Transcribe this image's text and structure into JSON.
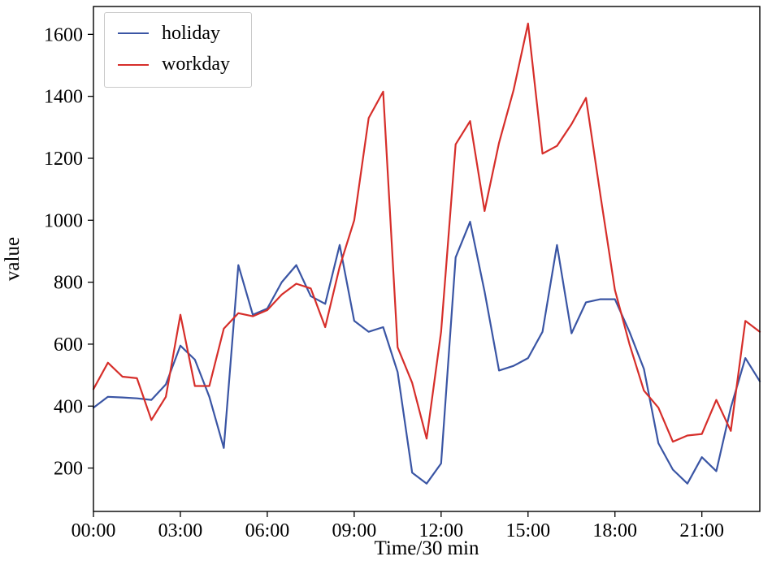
{
  "figure": {
    "xlabel": "Time/30 min",
    "ylabel": "value",
    "legend": {
      "position": "upper-left",
      "items": [
        {
          "label": "holiday"
        },
        {
          "label": "workday"
        }
      ]
    }
  },
  "chart_data": {
    "type": "line",
    "title": "",
    "xlabel": "Time/30 min",
    "ylabel": "value",
    "grid": false,
    "legend_position": "upper-left",
    "x_interval_minutes": 30,
    "x_times": [
      "00:00",
      "00:30",
      "01:00",
      "01:30",
      "02:00",
      "02:30",
      "03:00",
      "03:30",
      "04:00",
      "04:30",
      "05:00",
      "05:30",
      "06:00",
      "06:30",
      "07:00",
      "07:30",
      "08:00",
      "08:30",
      "09:00",
      "09:30",
      "10:00",
      "10:30",
      "11:00",
      "11:30",
      "12:00",
      "12:30",
      "13:00",
      "13:30",
      "14:00",
      "14:30",
      "15:00",
      "15:30",
      "16:00",
      "16:30",
      "17:00",
      "17:30",
      "18:00",
      "18:30",
      "19:00",
      "19:30",
      "20:00",
      "20:30",
      "21:00",
      "21:30",
      "22:00",
      "22:30",
      "23:00"
    ],
    "series": [
      {
        "name": "holiday",
        "color": "#3a55a4",
        "values": [
          395,
          430,
          428,
          425,
          420,
          470,
          595,
          550,
          430,
          265,
          855,
          695,
          715,
          800,
          855,
          755,
          730,
          920,
          675,
          640,
          655,
          510,
          185,
          150,
          215,
          880,
          995,
          770,
          515,
          530,
          555,
          640,
          920,
          635,
          735,
          745,
          745,
          640,
          520,
          280,
          195,
          150,
          235,
          190,
          395,
          555,
          480
        ]
      },
      {
        "name": "workday",
        "color": "#d62e2a",
        "values": [
          455,
          540,
          495,
          490,
          355,
          430,
          695,
          465,
          465,
          650,
          700,
          690,
          710,
          760,
          795,
          780,
          655,
          850,
          1000,
          1330,
          1415,
          590,
          475,
          295,
          640,
          1245,
          1320,
          1030,
          1250,
          1420,
          1635,
          1215,
          1240,
          1310,
          1395,
          1080,
          775,
          600,
          450,
          395,
          285,
          305,
          310,
          420,
          320,
          675,
          640
        ]
      }
    ],
    "xtick_indices": [
      0,
      6,
      12,
      18,
      24,
      30,
      36,
      42
    ],
    "xtick_labels": [
      "00:00",
      "03:00",
      "06:00",
      "09:00",
      "12:00",
      "15:00",
      "18:00",
      "21:00"
    ],
    "yticks": [
      200,
      400,
      600,
      800,
      1000,
      1200,
      1400,
      1600
    ],
    "ylim": [
      60,
      1690
    ],
    "xlim_indices": [
      0,
      46
    ],
    "axis_color": "#000000"
  }
}
